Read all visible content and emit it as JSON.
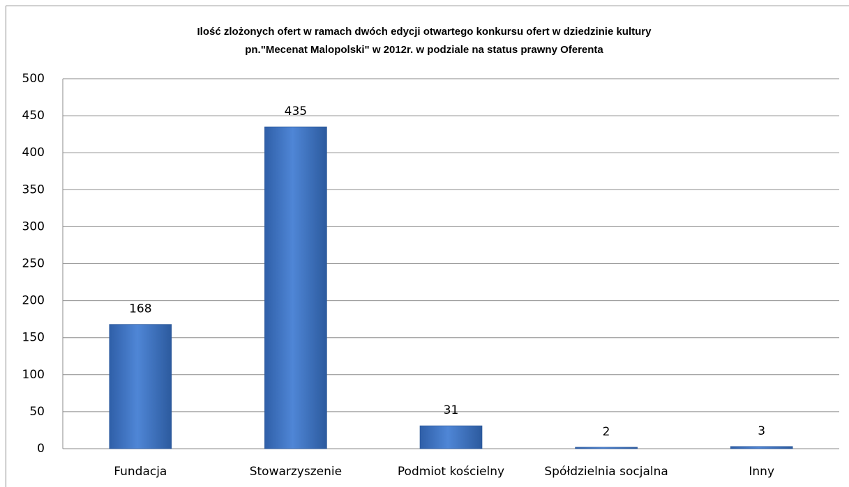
{
  "chart_data": {
    "type": "bar",
    "title": [
      "Ilość zlożonych ofert w ramach dwóch edycji otwartego konkursu ofert w dziedzinie kultury",
      "pn.\"Mecenat Malopolski\" w 2012r. w podziale na status prawny Oferenta"
    ],
    "categories": [
      "Fundacja",
      "Stowarzyszenie",
      "Podmiot kościelny",
      "Spółdzielnia socjalna",
      "Inny"
    ],
    "values": [
      168,
      435,
      31,
      2,
      3
    ],
    "color": "#3d74c6",
    "ylim": [
      0,
      500
    ],
    "yticks": [
      0,
      50,
      100,
      150,
      200,
      250,
      300,
      350,
      400,
      450,
      500
    ],
    "grid": true
  }
}
